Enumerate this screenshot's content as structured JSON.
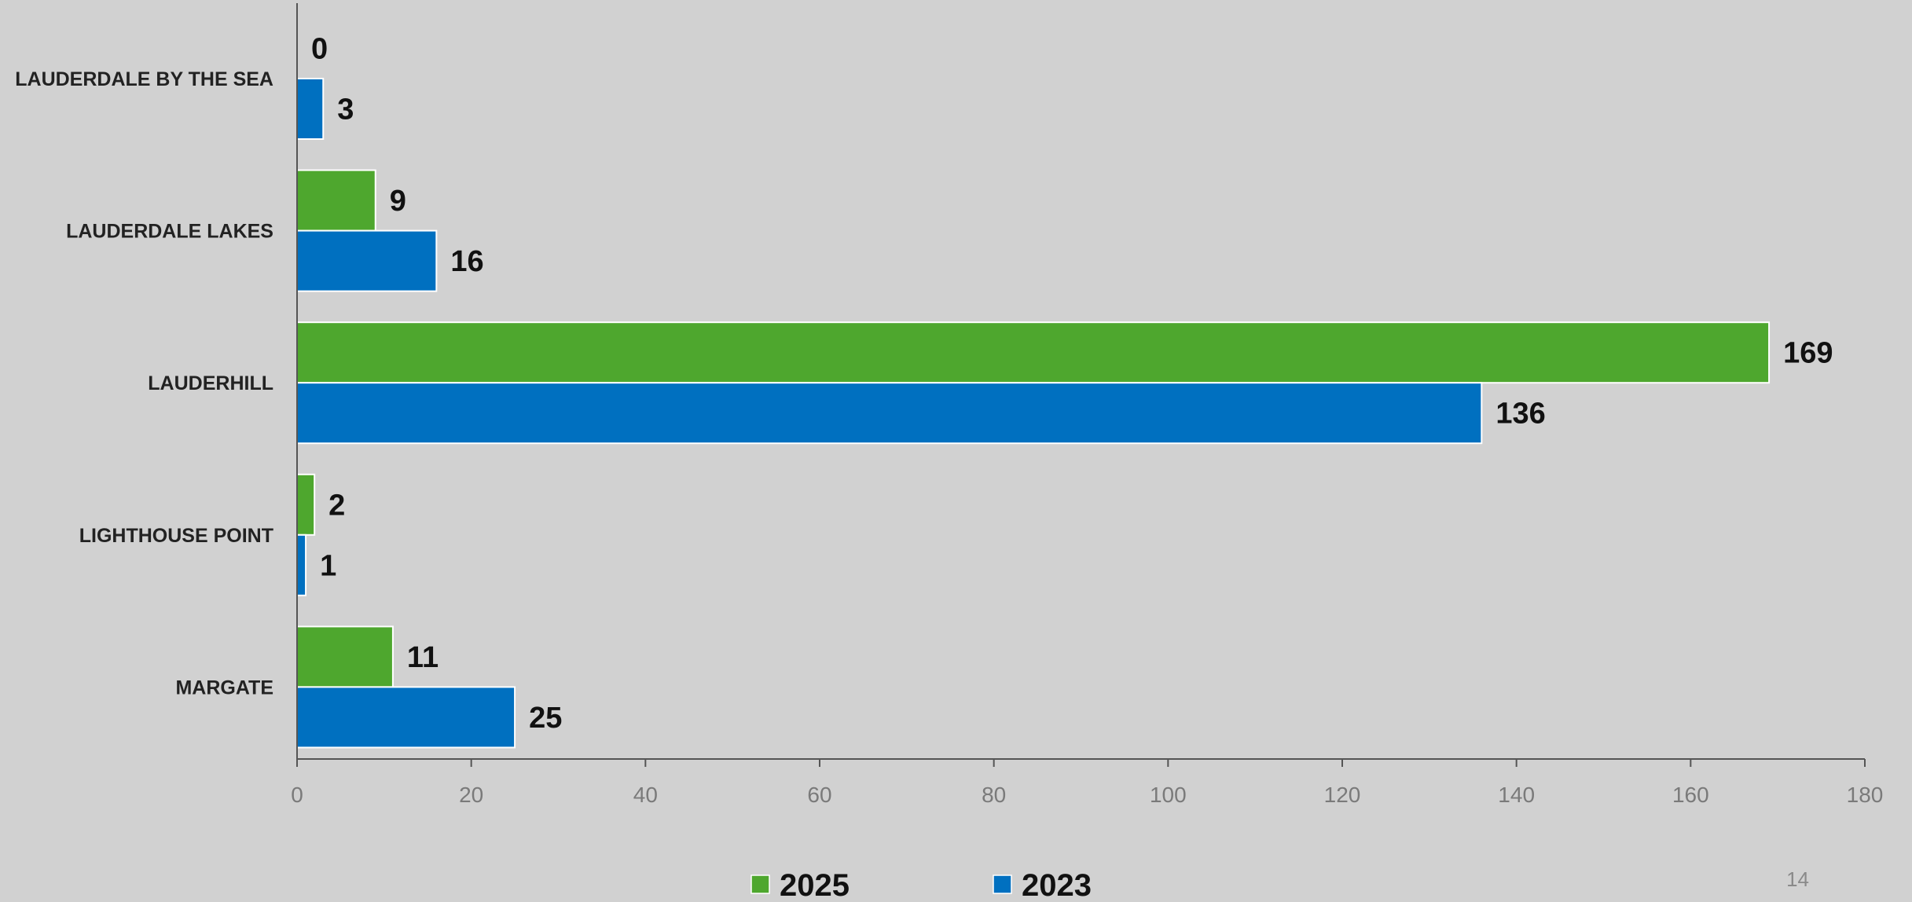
{
  "chart_data": {
    "type": "bar",
    "orientation": "horizontal",
    "title": "",
    "xlabel": "",
    "ylabel": "",
    "categories": [
      "LAUDERDALE BY THE SEA",
      "LAUDERDALE LAKES",
      "LAUDERHILL",
      "LIGHTHOUSE POINT",
      "MARGATE"
    ],
    "series": [
      {
        "name": "2025",
        "color": "#4ea72e",
        "values": [
          0,
          9,
          169,
          2,
          11
        ]
      },
      {
        "name": "2023",
        "color": "#0070c0",
        "values": [
          3,
          16,
          136,
          1,
          25
        ]
      }
    ],
    "xlim": [
      0,
      180
    ],
    "xticks": [
      0,
      20,
      40,
      60,
      80,
      100,
      120,
      140,
      160,
      180
    ],
    "grid": false,
    "legend": "bottom-center"
  },
  "page_number": "14"
}
